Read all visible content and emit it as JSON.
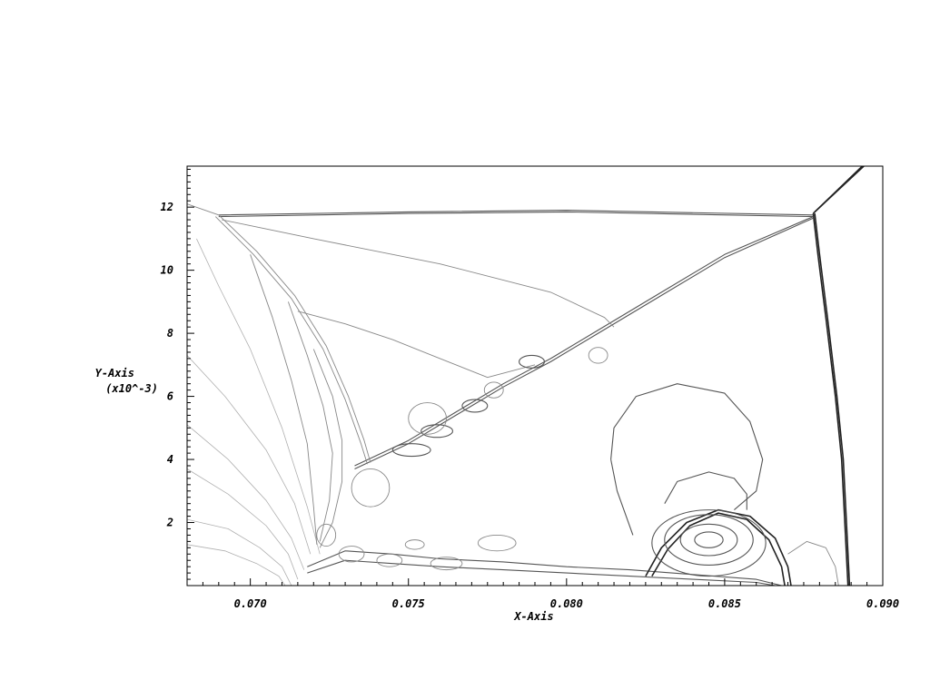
{
  "chart_data": {
    "type": "contour",
    "title": "",
    "xlabel": "X-Axis",
    "ylabel": "Y-Axis",
    "ylabel_scale": "(x10^-3)",
    "xlim": [
      0.068,
      0.09
    ],
    "ylim": [
      0,
      13.3
    ],
    "x_ticks": [
      {
        "value": 0.07,
        "label": "0.070"
      },
      {
        "value": 0.075,
        "label": "0.075"
      },
      {
        "value": 0.08,
        "label": "0.080"
      },
      {
        "value": 0.085,
        "label": "0.085"
      },
      {
        "value": 0.09,
        "label": "0.090"
      }
    ],
    "y_ticks": [
      {
        "value": 2,
        "label": "2"
      },
      {
        "value": 4,
        "label": "4"
      },
      {
        "value": 6,
        "label": "6"
      },
      {
        "value": 8,
        "label": "8"
      },
      {
        "value": 10,
        "label": "10"
      },
      {
        "value": 12,
        "label": "12"
      }
    ],
    "grid": false,
    "legend": "none",
    "colors": {
      "dark": "#222222",
      "mid": "#555555",
      "light": "#888888",
      "faint": "#b0b0b0"
    },
    "contours": [
      {
        "name": "mach-stem-shock",
        "shade": "dark",
        "points": [
          [
            0.0878,
            11.8
          ],
          [
            0.08795,
            10.5
          ],
          [
            0.0882,
            8.5
          ],
          [
            0.0885,
            6
          ],
          [
            0.0887,
            4
          ],
          [
            0.0888,
            2
          ],
          [
            0.0889,
            0
          ]
        ]
      },
      {
        "name": "mach-stem-shock-2",
        "shade": "dark",
        "points": [
          [
            0.08785,
            11.8
          ],
          [
            0.088,
            10.5
          ],
          [
            0.08825,
            8.5
          ],
          [
            0.08855,
            6
          ],
          [
            0.08875,
            4
          ],
          [
            0.08885,
            2
          ],
          [
            0.08895,
            0
          ]
        ]
      },
      {
        "name": "reflected-shock-upper",
        "shade": "dark",
        "points": [
          [
            0.0878,
            11.8
          ],
          [
            0.0894,
            13.3
          ]
        ]
      },
      {
        "name": "reflected-shock-upper-2",
        "shade": "dark",
        "points": [
          [
            0.08785,
            11.85
          ],
          [
            0.08935,
            13.3
          ]
        ]
      },
      {
        "name": "incident-shock-top",
        "shade": "mid",
        "points": [
          [
            0.069,
            11.75
          ],
          [
            0.075,
            11.85
          ],
          [
            0.08,
            11.9
          ],
          [
            0.0878,
            11.75
          ]
        ]
      },
      {
        "name": "incident-shock-top-2",
        "shade": "mid",
        "points": [
          [
            0.069,
            11.7
          ],
          [
            0.075,
            11.8
          ],
          [
            0.08,
            11.85
          ],
          [
            0.0878,
            11.7
          ]
        ]
      },
      {
        "name": "shear-layer-diagonal",
        "shade": "mid",
        "points": [
          [
            0.0733,
            3.8
          ],
          [
            0.075,
            4.6
          ],
          [
            0.0765,
            5.5
          ],
          [
            0.078,
            6.4
          ],
          [
            0.0795,
            7.2
          ],
          [
            0.081,
            8.1
          ],
          [
            0.083,
            9.3
          ],
          [
            0.085,
            10.5
          ],
          [
            0.0878,
            11.7
          ]
        ]
      },
      {
        "name": "shear-layer-diagonal-2",
        "shade": "mid",
        "points": [
          [
            0.0733,
            3.7
          ],
          [
            0.075,
            4.5
          ],
          [
            0.0765,
            5.4
          ],
          [
            0.078,
            6.3
          ],
          [
            0.0795,
            7.1
          ],
          [
            0.081,
            8.0
          ],
          [
            0.083,
            9.2
          ],
          [
            0.085,
            10.4
          ],
          [
            0.0878,
            11.65
          ]
        ]
      },
      {
        "name": "curved-shock-left",
        "shade": "light",
        "points": [
          [
            0.069,
            11.75
          ],
          [
            0.0702,
            10.6
          ],
          [
            0.0714,
            9.2
          ],
          [
            0.0724,
            7.6
          ],
          [
            0.0731,
            6.0
          ],
          [
            0.0736,
            4.6
          ],
          [
            0.0738,
            3.9
          ]
        ]
      },
      {
        "name": "curved-shock-left-2",
        "shade": "light",
        "points": [
          [
            0.0689,
            11.7
          ],
          [
            0.0701,
            10.5
          ],
          [
            0.0713,
            9.1
          ],
          [
            0.0723,
            7.5
          ],
          [
            0.073,
            5.9
          ],
          [
            0.0735,
            4.5
          ],
          [
            0.0737,
            3.85
          ]
        ]
      },
      {
        "name": "upper-left-edge",
        "shade": "light",
        "points": [
          [
            0.068,
            12.1
          ],
          [
            0.069,
            11.75
          ]
        ]
      },
      {
        "name": "inner-contour-top",
        "shade": "light",
        "points": [
          [
            0.0691,
            11.6
          ],
          [
            0.072,
            11.0
          ],
          [
            0.076,
            10.2
          ],
          [
            0.0795,
            9.3
          ],
          [
            0.0812,
            8.5
          ],
          [
            0.0815,
            8.2
          ]
        ]
      },
      {
        "name": "inner-contour-mid",
        "shade": "light",
        "points": [
          [
            0.0715,
            8.7
          ],
          [
            0.073,
            8.3
          ],
          [
            0.0745,
            7.8
          ],
          [
            0.076,
            7.2
          ],
          [
            0.0775,
            6.6
          ],
          [
            0.079,
            7.0
          ]
        ]
      },
      {
        "name": "far-left-1",
        "shade": "faint",
        "points": [
          [
            0.0683,
            11.0
          ],
          [
            0.069,
            9.5
          ],
          [
            0.07,
            7.5
          ],
          [
            0.071,
            5.0
          ],
          [
            0.0718,
            2.5
          ],
          [
            0.0722,
            1.0
          ]
        ]
      },
      {
        "name": "far-left-2",
        "shade": "faint",
        "points": [
          [
            0.068,
            7.3
          ],
          [
            0.0692,
            6.0
          ],
          [
            0.0705,
            4.3
          ],
          [
            0.0714,
            2.6
          ],
          [
            0.0719,
            1.0
          ]
        ]
      },
      {
        "name": "far-left-3",
        "shade": "faint",
        "points": [
          [
            0.068,
            5.1
          ],
          [
            0.0693,
            4.0
          ],
          [
            0.0705,
            2.7
          ],
          [
            0.0713,
            1.5
          ],
          [
            0.0717,
            0.5
          ]
        ]
      },
      {
        "name": "far-left-4",
        "shade": "faint",
        "points": [
          [
            0.068,
            3.7
          ],
          [
            0.0693,
            2.9
          ],
          [
            0.0705,
            1.9
          ],
          [
            0.0712,
            1.0
          ],
          [
            0.0715,
            0.2
          ]
        ]
      },
      {
        "name": "far-left-5",
        "shade": "faint",
        "points": [
          [
            0.068,
            2.1
          ],
          [
            0.0693,
            1.8
          ],
          [
            0.0703,
            1.2
          ],
          [
            0.071,
            0.6
          ],
          [
            0.0713,
            0
          ]
        ]
      },
      {
        "name": "far-left-6",
        "shade": "faint",
        "points": [
          [
            0.068,
            1.3
          ],
          [
            0.0692,
            1.1
          ],
          [
            0.0702,
            0.7
          ],
          [
            0.0709,
            0.3
          ],
          [
            0.0711,
            0
          ]
        ]
      },
      {
        "name": "near-left-1",
        "shade": "light",
        "points": [
          [
            0.07,
            10.5
          ],
          [
            0.0707,
            8.5
          ],
          [
            0.0713,
            6.5
          ],
          [
            0.0718,
            4.5
          ],
          [
            0.072,
            2.5
          ],
          [
            0.0721,
            1.3
          ]
        ]
      },
      {
        "name": "near-left-2",
        "shade": "light",
        "points": [
          [
            0.0712,
            9.0
          ],
          [
            0.0718,
            7.3
          ],
          [
            0.0723,
            5.7
          ],
          [
            0.0726,
            4.2
          ],
          [
            0.0725,
            2.7
          ],
          [
            0.0722,
            1.4
          ]
        ]
      },
      {
        "name": "near-left-3",
        "shade": "light",
        "points": [
          [
            0.072,
            7.5
          ],
          [
            0.0726,
            6.0
          ],
          [
            0.0729,
            4.6
          ],
          [
            0.0729,
            3.3
          ],
          [
            0.0726,
            2.0
          ],
          [
            0.0722,
            1.2
          ]
        ]
      },
      {
        "name": "lower-shear-layer",
        "shade": "mid",
        "points": [
          [
            0.0718,
            0.6
          ],
          [
            0.073,
            1.1
          ],
          [
            0.0745,
            1.0
          ],
          [
            0.076,
            0.85
          ],
          [
            0.078,
            0.75
          ],
          [
            0.08,
            0.6
          ],
          [
            0.082,
            0.5
          ],
          [
            0.084,
            0.35
          ],
          [
            0.086,
            0.2
          ],
          [
            0.0868,
            0
          ]
        ]
      },
      {
        "name": "lower-shear-layer-2",
        "shade": "mid",
        "points": [
          [
            0.0718,
            0.4
          ],
          [
            0.073,
            0.8
          ],
          [
            0.0745,
            0.7
          ],
          [
            0.076,
            0.6
          ],
          [
            0.078,
            0.5
          ],
          [
            0.08,
            0.4
          ],
          [
            0.082,
            0.3
          ],
          [
            0.084,
            0.2
          ],
          [
            0.086,
            0.1
          ],
          [
            0.0866,
            0
          ]
        ]
      },
      {
        "name": "vortex-outer",
        "shade": "dark",
        "points": [
          [
            0.0825,
            0.3
          ],
          [
            0.083,
            1.2
          ],
          [
            0.0838,
            2.0
          ],
          [
            0.0848,
            2.4
          ],
          [
            0.0858,
            2.2
          ],
          [
            0.0866,
            1.5
          ],
          [
            0.087,
            0.6
          ],
          [
            0.0871,
            0
          ]
        ]
      },
      {
        "name": "vortex-outer-2",
        "shade": "dark",
        "points": [
          [
            0.0827,
            0.3
          ],
          [
            0.0832,
            1.15
          ],
          [
            0.0839,
            1.9
          ],
          [
            0.0848,
            2.3
          ],
          [
            0.0857,
            2.1
          ],
          [
            0.0864,
            1.45
          ],
          [
            0.0868,
            0.6
          ],
          [
            0.0869,
            0
          ]
        ]
      },
      {
        "name": "bubble-outer",
        "shade": "mid",
        "points": [
          [
            0.0814,
            4.0
          ],
          [
            0.0815,
            5.0
          ],
          [
            0.0822,
            6.0
          ],
          [
            0.0835,
            6.4
          ],
          [
            0.085,
            6.1
          ],
          [
            0.0858,
            5.2
          ],
          [
            0.0862,
            4.0
          ],
          [
            0.086,
            3.0
          ],
          [
            0.0853,
            2.4
          ]
        ]
      },
      {
        "name": "bubble-outer-left",
        "shade": "mid",
        "points": [
          [
            0.0814,
            4.0
          ],
          [
            0.0816,
            3.0
          ],
          [
            0.0821,
            1.6
          ]
        ]
      },
      {
        "name": "bubble-inner",
        "shade": "mid",
        "points": [
          [
            0.0831,
            2.6
          ],
          [
            0.0835,
            3.3
          ],
          [
            0.0845,
            3.6
          ],
          [
            0.0853,
            3.4
          ],
          [
            0.0857,
            2.9
          ],
          [
            0.0857,
            2.4
          ]
        ]
      },
      {
        "name": "vortex-right",
        "shade": "light",
        "points": [
          [
            0.087,
            1.0
          ],
          [
            0.0876,
            1.4
          ],
          [
            0.0882,
            1.2
          ],
          [
            0.0885,
            0.6
          ],
          [
            0.0886,
            0
          ]
        ]
      }
    ],
    "closed_contours": [
      {
        "name": "vortex-core-1",
        "shade": "mid",
        "cx": 0.0845,
        "cy": 1.45,
        "rx": 0.00045,
        "ry": 0.25
      },
      {
        "name": "vortex-core-2",
        "shade": "mid",
        "cx": 0.0845,
        "cy": 1.45,
        "rx": 0.0009,
        "ry": 0.5
      },
      {
        "name": "vortex-core-3",
        "shade": "mid",
        "cx": 0.0845,
        "cy": 1.45,
        "rx": 0.0014,
        "ry": 0.8
      },
      {
        "name": "vortex-core-4",
        "shade": "mid",
        "cx": 0.0845,
        "cy": 1.35,
        "rx": 0.0018,
        "ry": 1.05
      },
      {
        "name": "eddy-1",
        "shade": "mid",
        "cx": 0.0751,
        "cy": 4.3,
        "rx": 0.0006,
        "ry": 0.2
      },
      {
        "name": "eddy-2",
        "shade": "mid",
        "cx": 0.0759,
        "cy": 4.9,
        "rx": 0.0005,
        "ry": 0.2
      },
      {
        "name": "eddy-3",
        "shade": "mid",
        "cx": 0.0771,
        "cy": 5.7,
        "rx": 0.0004,
        "ry": 0.2
      },
      {
        "name": "eddy-4",
        "shade": "mid",
        "cx": 0.0789,
        "cy": 7.1,
        "rx": 0.0004,
        "ry": 0.2
      },
      {
        "name": "eddy-5",
        "shade": "light",
        "cx": 0.0756,
        "cy": 5.3,
        "rx": 0.0006,
        "ry": 0.5
      },
      {
        "name": "eddy-6",
        "shade": "light",
        "cx": 0.0777,
        "cy": 6.2,
        "rx": 0.0003,
        "ry": 0.25
      },
      {
        "name": "eddy-7",
        "shade": "light",
        "cx": 0.081,
        "cy": 7.3,
        "rx": 0.0003,
        "ry": 0.25
      },
      {
        "name": "eddy-8",
        "shade": "light",
        "cx": 0.0738,
        "cy": 3.1,
        "rx": 0.0006,
        "ry": 0.6
      },
      {
        "name": "eddy-9",
        "shade": "light",
        "cx": 0.0778,
        "cy": 1.35,
        "rx": 0.0006,
        "ry": 0.25
      },
      {
        "name": "eddy-10",
        "shade": "light",
        "cx": 0.0732,
        "cy": 1.0,
        "rx": 0.0004,
        "ry": 0.25
      },
      {
        "name": "eddy-11",
        "shade": "light",
        "cx": 0.0752,
        "cy": 1.3,
        "rx": 0.0003,
        "ry": 0.15
      },
      {
        "name": "eddy-12",
        "shade": "light",
        "cx": 0.0762,
        "cy": 0.7,
        "rx": 0.0005,
        "ry": 0.2
      },
      {
        "name": "eddy-13",
        "shade": "light",
        "cx": 0.0724,
        "cy": 1.6,
        "rx": 0.0003,
        "ry": 0.35
      },
      {
        "name": "eddy-14",
        "shade": "light",
        "cx": 0.0744,
        "cy": 0.8,
        "rx": 0.0004,
        "ry": 0.2
      }
    ]
  }
}
